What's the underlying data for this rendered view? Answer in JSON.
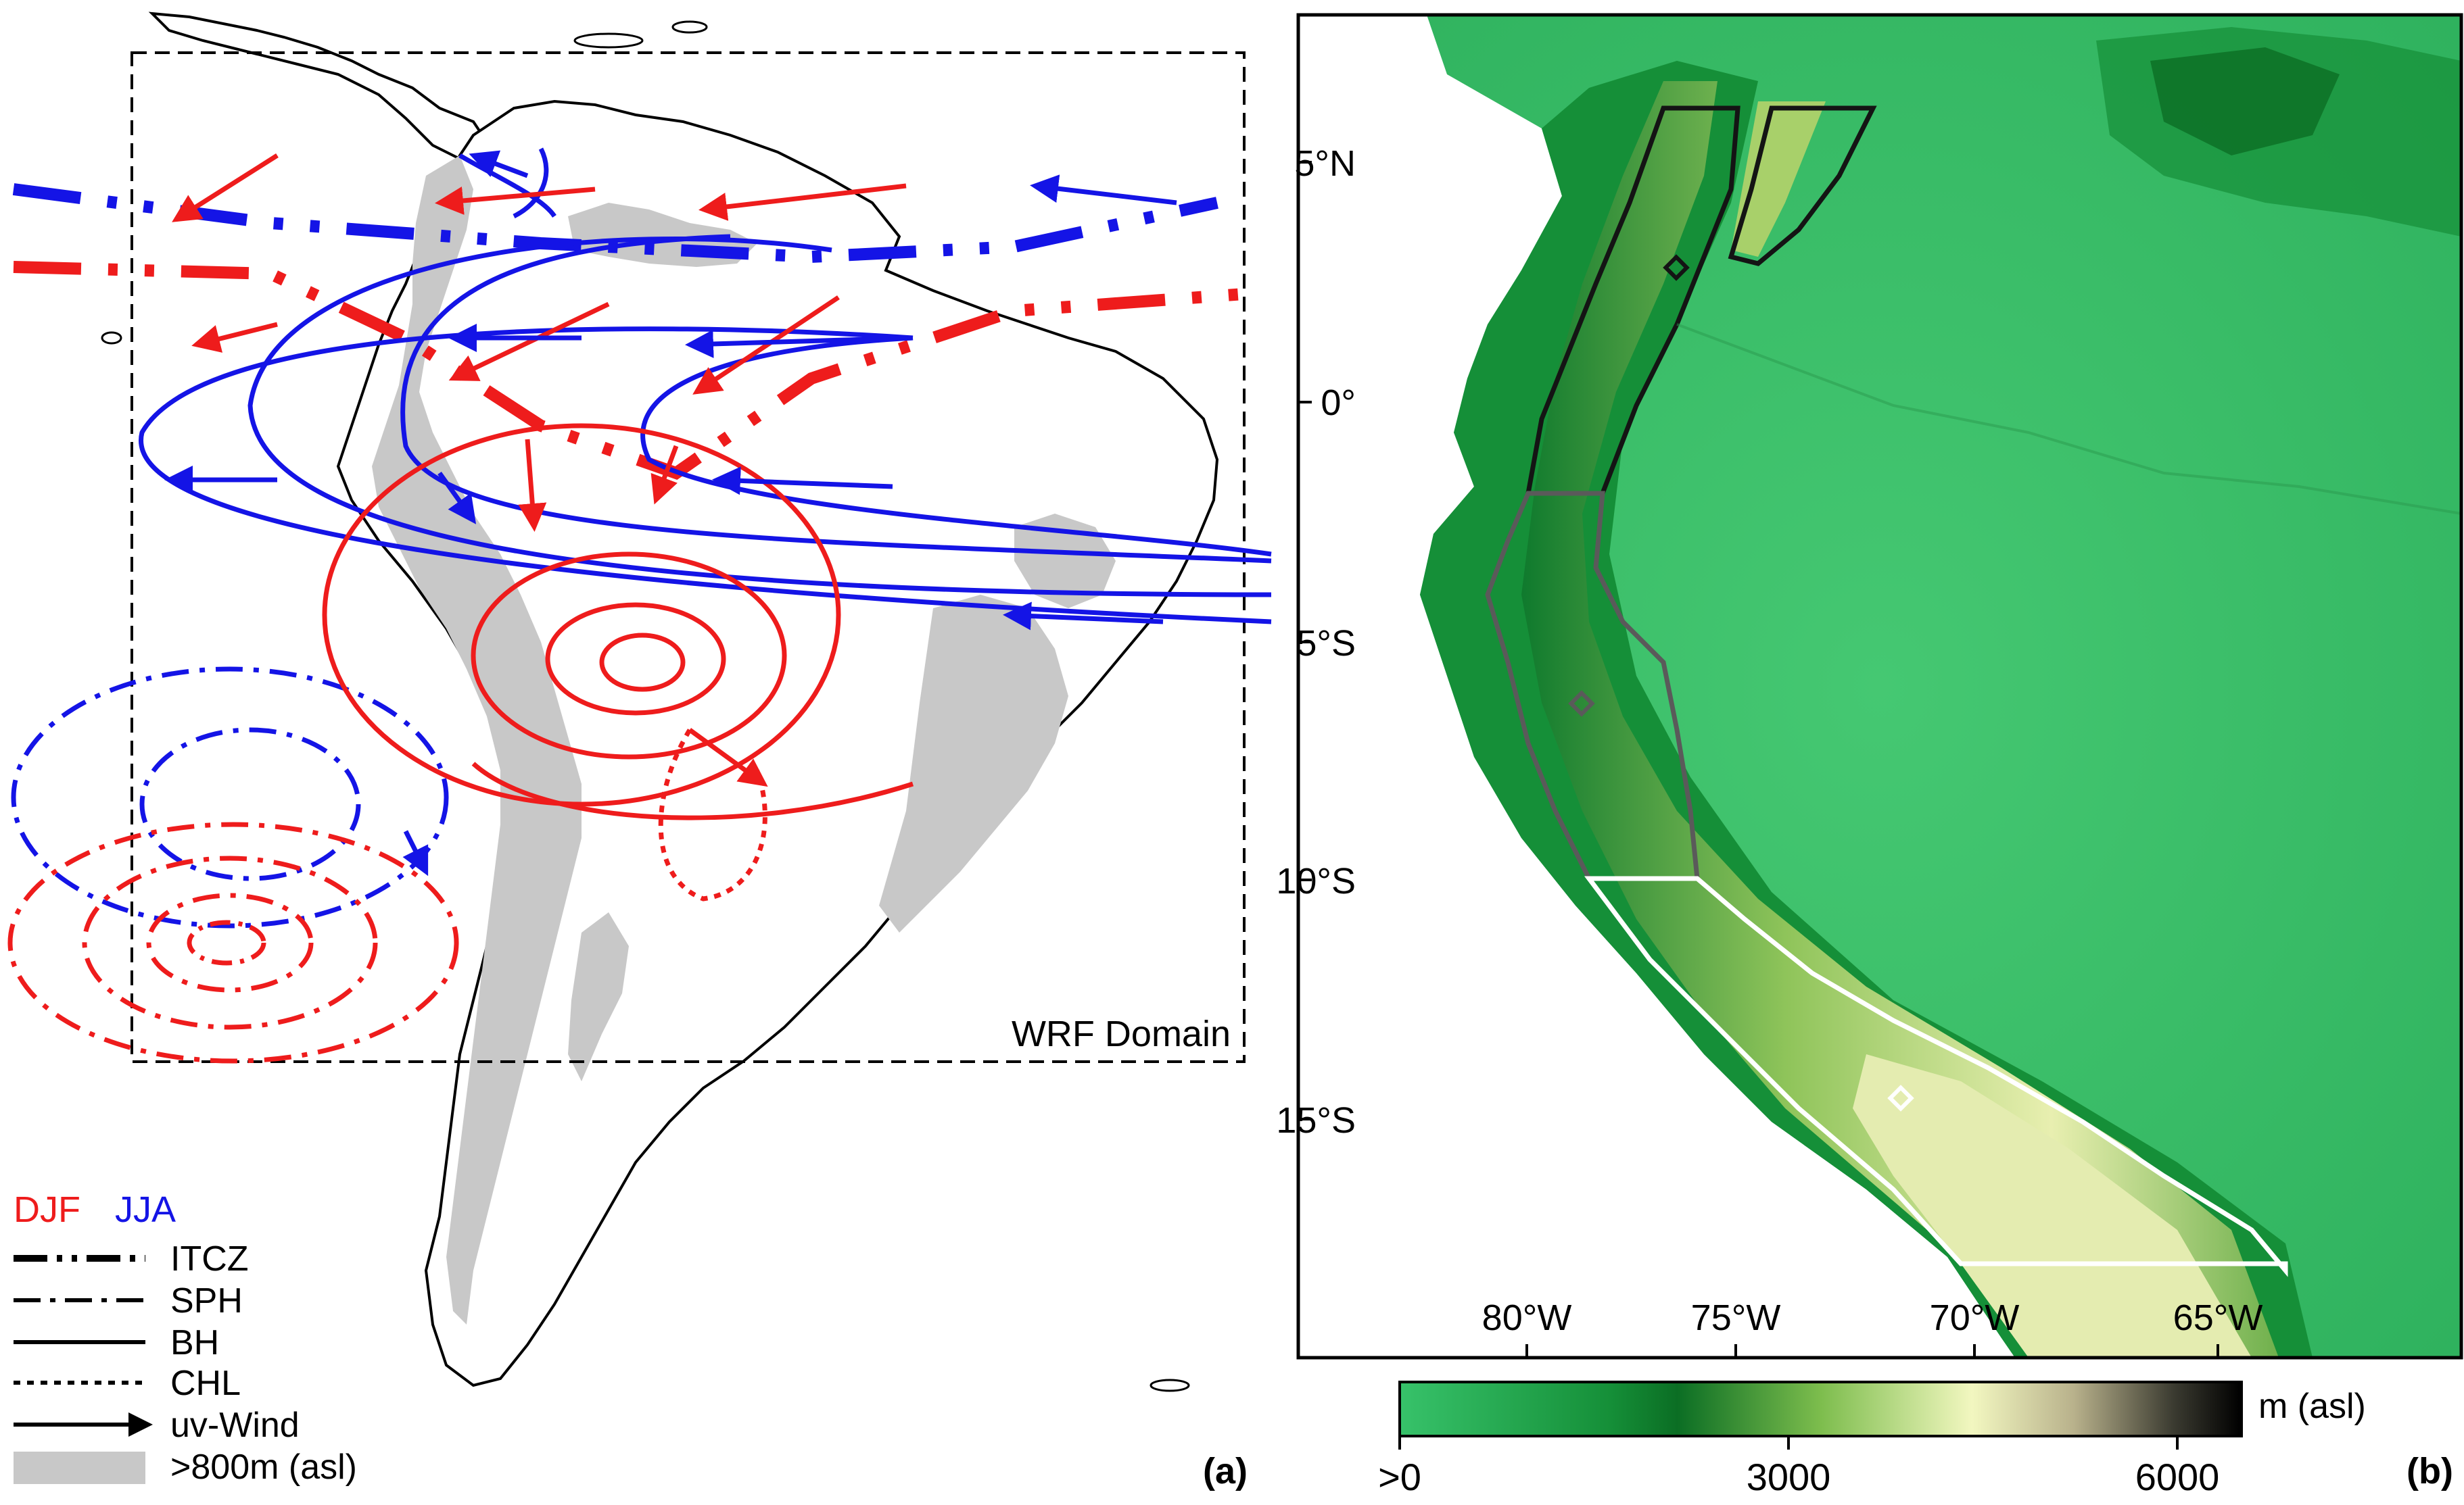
{
  "colors": {
    "djf": "#ee1c1c",
    "jja": "#1414e6",
    "terrain_gray": "#c8c8c8",
    "coast": "#000000",
    "low_green": "#37c26a",
    "mid_green": "#0b6e24",
    "highland_yellow": "#ecf1b6",
    "peak": "#000000",
    "white_region": "#ffffff",
    "gray_region": "#5a5a5a",
    "dark_region": "#141414"
  },
  "panel_a": {
    "label": "(a)",
    "domain_label": "WRF Domain",
    "legend": {
      "season_djf": "DJF",
      "season_jja": "JJA",
      "items": [
        {
          "key": "itcz",
          "label": "ITCZ",
          "line_style": "dash-dot-dot"
        },
        {
          "key": "sph",
          "label": "SPH",
          "line_style": "dash-dot"
        },
        {
          "key": "bh",
          "label": "BH",
          "line_style": "solid"
        },
        {
          "key": "chl",
          "label": "CHL",
          "line_style": "dotted"
        },
        {
          "key": "wind",
          "label": "uv-Wind",
          "line_style": "arrow"
        },
        {
          "key": "terrain",
          "label": ">800m (asl)",
          "line_style": "patch"
        }
      ]
    }
  },
  "panel_b": {
    "label": "(b)",
    "lat_labels": [
      "5°N",
      "0°",
      "5°S",
      "10°S",
      "15°S"
    ],
    "lon_labels": [
      "80°W",
      "75°W",
      "70°W",
      "65°W"
    ],
    "colorbar": {
      "unit": "m (asl)",
      "ticks": [
        ">0",
        "3000",
        "6000"
      ],
      "range": [
        0,
        6500
      ]
    }
  }
}
